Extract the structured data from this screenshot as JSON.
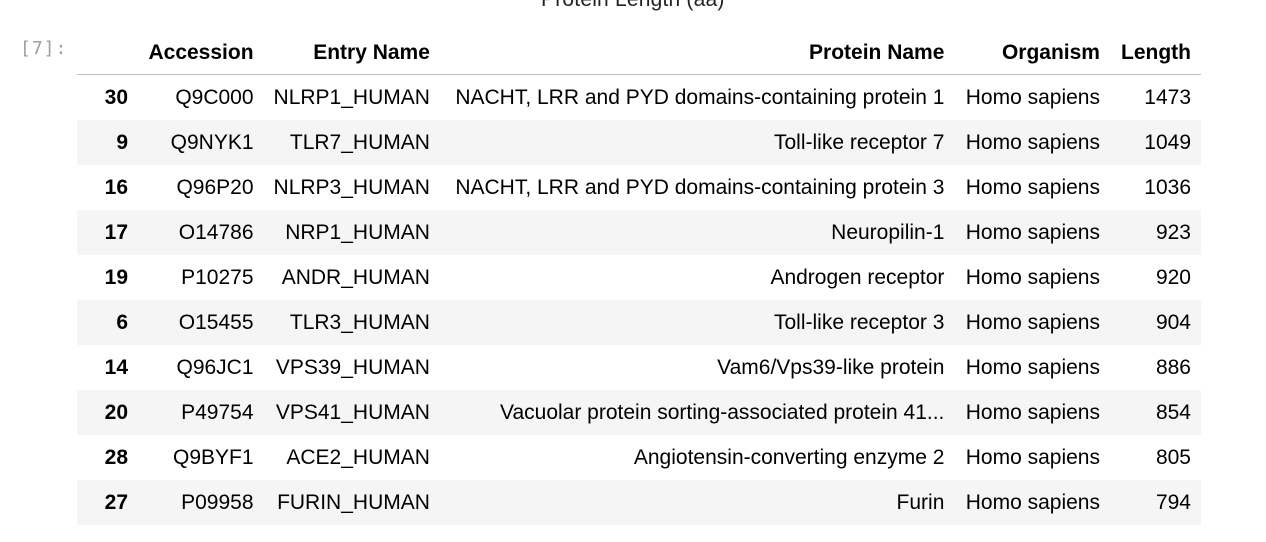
{
  "output": {
    "clipped_heading": "Protein Length (aa)",
    "prompt": "[7]:"
  },
  "table": {
    "columns": [
      "",
      "Accession",
      "Entry Name",
      "Protein Name",
      "Organism",
      "Length"
    ],
    "rows": [
      {
        "index": "30",
        "accession": "Q9C000",
        "entry_name": "NLRP1_HUMAN",
        "protein_name": "NACHT, LRR and PYD domains-containing protein 1",
        "organism": "Homo sapiens",
        "length": "1473"
      },
      {
        "index": "9",
        "accession": "Q9NYK1",
        "entry_name": "TLR7_HUMAN",
        "protein_name": "Toll-like receptor 7",
        "organism": "Homo sapiens",
        "length": "1049"
      },
      {
        "index": "16",
        "accession": "Q96P20",
        "entry_name": "NLRP3_HUMAN",
        "protein_name": "NACHT, LRR and PYD domains-containing protein 3",
        "organism": "Homo sapiens",
        "length": "1036"
      },
      {
        "index": "17",
        "accession": "O14786",
        "entry_name": "NRP1_HUMAN",
        "protein_name": "Neuropilin-1",
        "organism": "Homo sapiens",
        "length": "923"
      },
      {
        "index": "19",
        "accession": "P10275",
        "entry_name": "ANDR_HUMAN",
        "protein_name": "Androgen receptor",
        "organism": "Homo sapiens",
        "length": "920"
      },
      {
        "index": "6",
        "accession": "O15455",
        "entry_name": "TLR3_HUMAN",
        "protein_name": "Toll-like receptor 3",
        "organism": "Homo sapiens",
        "length": "904"
      },
      {
        "index": "14",
        "accession": "Q96JC1",
        "entry_name": "VPS39_HUMAN",
        "protein_name": "Vam6/Vps39-like protein",
        "organism": "Homo sapiens",
        "length": "886"
      },
      {
        "index": "20",
        "accession": "P49754",
        "entry_name": "VPS41_HUMAN",
        "protein_name": "Vacuolar protein sorting-associated protein 41...",
        "organism": "Homo sapiens",
        "length": "854"
      },
      {
        "index": "28",
        "accession": "Q9BYF1",
        "entry_name": "ACE2_HUMAN",
        "protein_name": "Angiotensin-converting enzyme 2",
        "organism": "Homo sapiens",
        "length": "805"
      },
      {
        "index": "27",
        "accession": "P09958",
        "entry_name": "FURIN_HUMAN",
        "protein_name": "Furin",
        "organism": "Homo sapiens",
        "length": "794"
      }
    ]
  },
  "colors": {
    "stripe": "#f5f5f5",
    "prompt": "#9e9e9e",
    "header_rule": "#bdbdbd"
  }
}
